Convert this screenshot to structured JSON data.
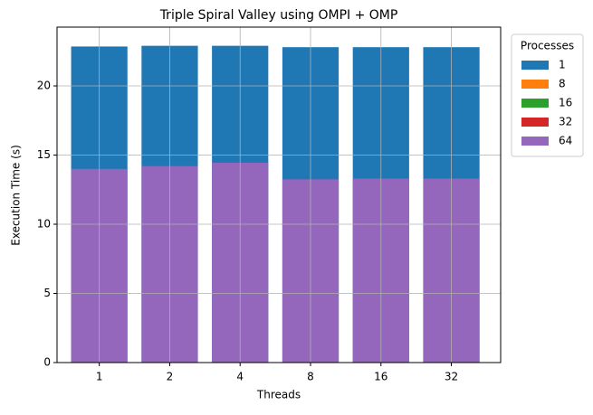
{
  "chart_data": {
    "type": "bar",
    "overlay": true,
    "title": "Triple Spiral Valley using OMPI + OMP",
    "x_label": "Threads",
    "y_label": "Execution Time (s)",
    "categories": [
      "1",
      "2",
      "4",
      "8",
      "16",
      "32"
    ],
    "series": [
      {
        "name": "1",
        "color": "#1f77b4",
        "values": [
          22.85,
          22.9,
          22.9,
          22.8,
          22.8,
          22.8
        ]
      },
      {
        "name": "8",
        "color": "#ff7f0e",
        "values": [
          null,
          null,
          null,
          null,
          null,
          null
        ]
      },
      {
        "name": "16",
        "color": "#2ca02c",
        "values": [
          null,
          null,
          null,
          null,
          null,
          null
        ]
      },
      {
        "name": "32",
        "color": "#d62728",
        "values": [
          null,
          null,
          null,
          null,
          null,
          null
        ]
      },
      {
        "name": "64",
        "color": "#9467bd",
        "values": [
          14.0,
          14.2,
          14.45,
          13.25,
          13.3,
          13.3
        ]
      }
    ],
    "ylim": [
      0,
      24.25
    ],
    "yticks": [
      0,
      5,
      10,
      15,
      20
    ],
    "grid": true,
    "legend_title": "Processes",
    "legend_position": "outside-upper-right"
  }
}
